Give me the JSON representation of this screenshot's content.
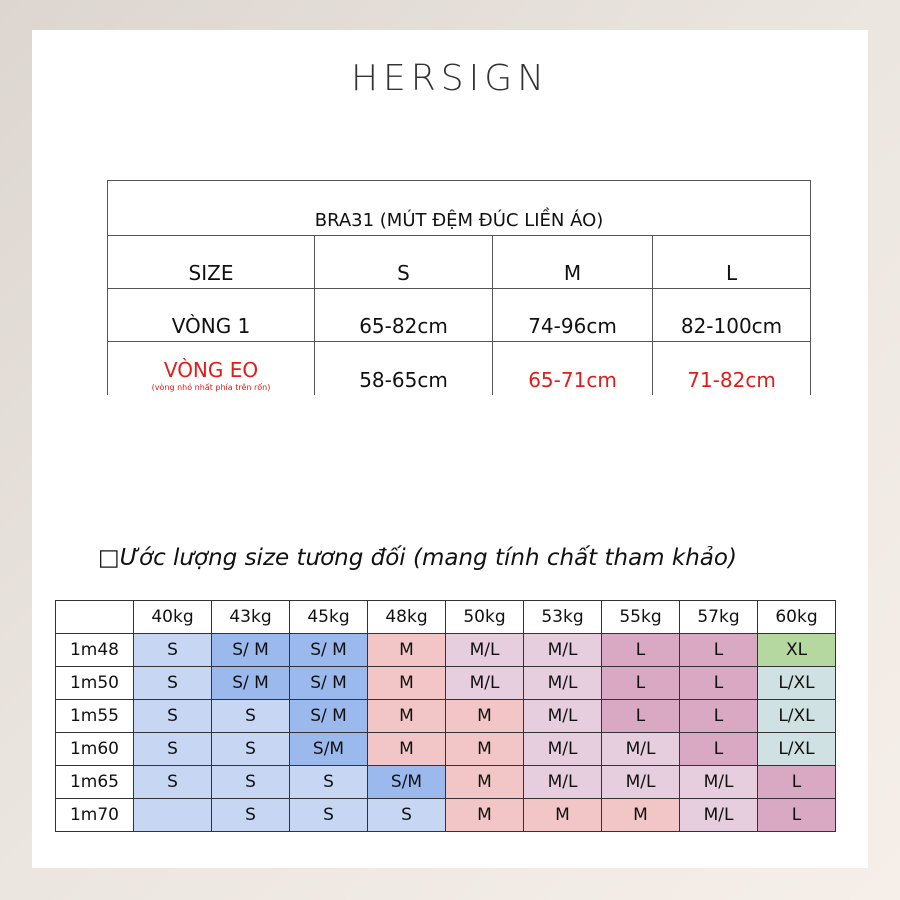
{
  "brand": "HERSIGN",
  "product_table": {
    "title": "BRA31 (MÚT ĐỆM ĐÚC LIỀN ÁO)",
    "header": [
      "SIZE",
      "S",
      "M",
      "L"
    ],
    "rows": [
      {
        "label": "VÒNG 1",
        "note": "",
        "values": [
          "65-82cm",
          "74-96cm",
          "82-100cm"
        ]
      },
      {
        "label": "VÒNG EO",
        "note": "(vòng nhỏ nhất phía trên rốn)",
        "values": [
          "58-65cm",
          "65-71cm",
          "71-82cm"
        ]
      }
    ]
  },
  "estimate_heading": "Ước lượng size tương đối (mang tính chất tham khảo)",
  "estimate_table": {
    "weights": [
      "40kg",
      "43kg",
      "45kg",
      "48kg",
      "50kg",
      "53kg",
      "55kg",
      "57kg",
      "60kg"
    ],
    "rows": [
      {
        "height": "1m48",
        "sizes": [
          "S",
          "S/ M",
          "S/ M",
          "M",
          "M/L",
          "M/L",
          "L",
          "L",
          "XL"
        ]
      },
      {
        "height": "1m50",
        "sizes": [
          "S",
          "S/ M",
          "S/ M",
          "M",
          "M/L",
          "M/L",
          "L",
          "L",
          "L/XL"
        ]
      },
      {
        "height": "1m55",
        "sizes": [
          "S",
          "S",
          "S/ M",
          "M",
          "M",
          "M/L",
          "L",
          "L",
          "L/XL"
        ]
      },
      {
        "height": "1m60",
        "sizes": [
          "S",
          "S",
          "S/M",
          "M",
          "M",
          "M/L",
          "M/L",
          "L",
          "L/XL"
        ]
      },
      {
        "height": "1m65",
        "sizes": [
          "S",
          "S",
          "S",
          "S/M",
          "M",
          "M/L",
          "M/L",
          "M/L",
          "L"
        ]
      },
      {
        "height": "1m70",
        "sizes": [
          "",
          "S",
          "S",
          "S",
          "M",
          "M",
          "M",
          "M/L",
          "L"
        ]
      }
    ]
  },
  "colors": {
    "red_text": "#e21b1b",
    "blue": "#c6d6f3",
    "blue_dark": "#9cb9ee",
    "pink": "#f2c6c6",
    "lavender": "#e6cede",
    "mauve": "#d9a9c4",
    "green": "#b5d7a0",
    "teal": "#cfe1e2"
  }
}
